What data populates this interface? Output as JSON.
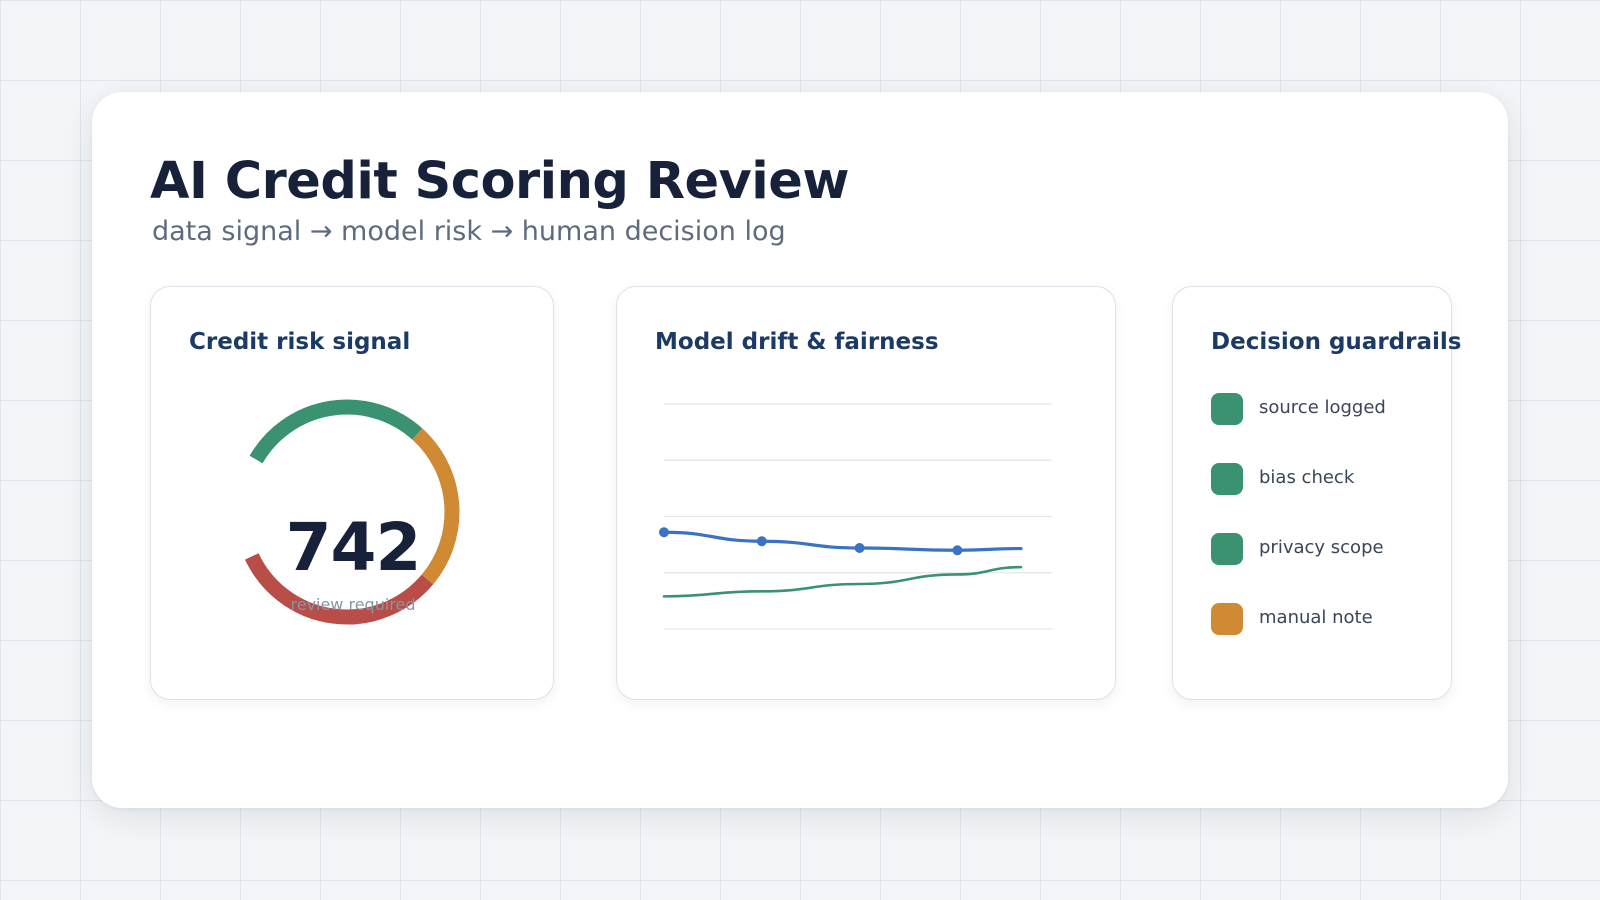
{
  "header": {
    "title": "AI Credit Scoring Review",
    "subtitle": "data signal → model risk → human decision log"
  },
  "risk_panel": {
    "title": "Credit risk signal",
    "score": "742",
    "caption": "review required",
    "gauge_segments": [
      {
        "name": "healthy",
        "color": "#3a9271"
      },
      {
        "name": "caution",
        "color": "#d08a34"
      },
      {
        "name": "risk",
        "color": "#b94d48"
      }
    ]
  },
  "drift_panel": {
    "title": "Model drift & fairness"
  },
  "chart_data": {
    "type": "line",
    "title": "Model drift & fairness",
    "xlabel": "",
    "ylabel": "",
    "ylim": [
      0,
      4
    ],
    "grid": true,
    "legend": "none",
    "x": [
      0,
      1,
      2,
      3,
      3.65
    ],
    "series": [
      {
        "color": "#3a72c4",
        "markers": true,
        "values": [
          1.72,
          1.56,
          1.44,
          1.4,
          1.43
        ]
      },
      {
        "color": "#3a9271",
        "markers": false,
        "values": [
          0.58,
          0.67,
          0.8,
          0.97,
          1.1
        ]
      }
    ]
  },
  "guardrails": {
    "title": "Decision guardrails",
    "items": [
      {
        "label": "source logged",
        "color": "#3a9271"
      },
      {
        "label": "bias check",
        "color": "#3a9271"
      },
      {
        "label": "privacy scope",
        "color": "#3a9271"
      },
      {
        "label": "manual note",
        "color": "#d08a34"
      }
    ]
  }
}
